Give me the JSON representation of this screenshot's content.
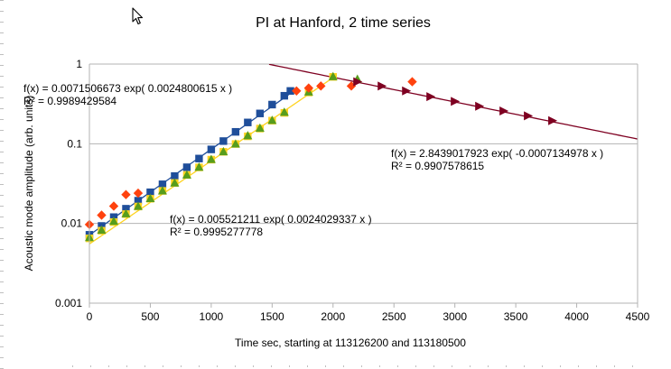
{
  "chart_data": {
    "type": "scatter",
    "title": "PI at Hanford, 2 time series",
    "xlabel": "Time sec, starting at 113126200 and 113180500",
    "ylabel": "Acoustic mode amplitude (arb. units)",
    "xlim": [
      0,
      4500
    ],
    "ylim": [
      0.001,
      1
    ],
    "y_scale": "log",
    "x_ticks": [
      "0",
      "500",
      "1000",
      "1500",
      "2000",
      "2500",
      "3000",
      "3500",
      "4000",
      "4500"
    ],
    "x_tick_values": [
      0,
      500,
      1000,
      1500,
      2000,
      2500,
      3000,
      3500,
      4000,
      4500
    ],
    "y_ticks": [
      "0.001",
      "0.01",
      "0.1",
      "1"
    ],
    "y_tick_values": [
      0.001,
      0.01,
      0.1,
      1
    ],
    "grid": "horizontal",
    "legend": "none",
    "series": [
      {
        "marker": "square",
        "color": "#1f4e9a",
        "x": [
          0,
          100,
          200,
          300,
          400,
          500,
          600,
          700,
          800,
          900,
          1000,
          1100,
          1200,
          1300,
          1400,
          1500,
          1600,
          1650
        ],
        "y": [
          0.0072,
          0.0093,
          0.012,
          0.0153,
          0.0193,
          0.0246,
          0.031,
          0.0393,
          0.0507,
          0.0652,
          0.0849,
          0.108,
          0.141,
          0.185,
          0.24,
          0.31,
          0.4,
          0.46
        ]
      },
      {
        "marker": "square",
        "color": "#ffd320",
        "x": [
          0,
          100,
          200,
          300,
          400,
          500,
          600,
          700,
          800,
          900,
          1000,
          1100,
          1200,
          1300,
          1400,
          1500,
          1600,
          1800,
          2000
        ],
        "y": [
          0.0065,
          0.0081,
          0.0104,
          0.0131,
          0.0163,
          0.0204,
          0.0256,
          0.0322,
          0.0406,
          0.0505,
          0.0632,
          0.0792,
          0.0993,
          0.124,
          0.155,
          0.195,
          0.244,
          0.44,
          0.69
        ]
      },
      {
        "marker": "triangle",
        "color": "#579d1c",
        "x": [
          0,
          100,
          200,
          300,
          400,
          500,
          600,
          700,
          800,
          900,
          1000,
          1100,
          1200,
          1300,
          1400,
          1500,
          1600,
          1800,
          2000,
          2200
        ],
        "y": [
          0.0067,
          0.0083,
          0.0107,
          0.0133,
          0.0165,
          0.0207,
          0.0258,
          0.0324,
          0.0408,
          0.0512,
          0.064,
          0.08,
          0.1,
          0.127,
          0.158,
          0.198,
          0.25,
          0.45,
          0.7,
          0.65
        ]
      },
      {
        "marker": "diamond",
        "color": "#ff420e",
        "x": [
          0,
          100,
          200,
          300,
          400,
          1700,
          1800,
          1900,
          2150,
          2650
        ],
        "y": [
          0.0097,
          0.0127,
          0.0165,
          0.023,
          0.024,
          0.46,
          0.5,
          0.53,
          0.53,
          0.6
        ]
      },
      {
        "marker": "triangle-right",
        "color": "#7e0021",
        "x": [
          2200,
          2400,
          2600,
          2800,
          3000,
          3200,
          3400,
          3600,
          3800
        ],
        "y": [
          0.6,
          0.53,
          0.46,
          0.39,
          0.34,
          0.296,
          0.258,
          0.224,
          0.195
        ]
      }
    ],
    "trendlines": [
      {
        "color": "#1f4e9a",
        "a": 0.0071506673,
        "b": 0.0024800615,
        "x_range": [
          0,
          1690
        ]
      },
      {
        "color": "#ffd320",
        "a": 0.005521211,
        "b": 0.0024029337,
        "x_range": [
          0,
          2000
        ]
      },
      {
        "color": "#7e0021",
        "a": 2.8439017923,
        "b": -0.0007134978,
        "x_range": [
          1475,
          4500
        ]
      }
    ],
    "annotations": [
      {
        "eq": "f(x) = 0.0071506673 exp( 0.0024800615 x )",
        "r2": "R² = 0.9989429584"
      },
      {
        "eq": "f(x) = 2.8439017923 exp( -0.0007134978 x )",
        "r2": "R² = 0.9907578615"
      },
      {
        "eq": "f(x) = 0.005521211 exp( 0.0024029337 x )",
        "r2": "R² = 0.9995277778"
      }
    ]
  }
}
